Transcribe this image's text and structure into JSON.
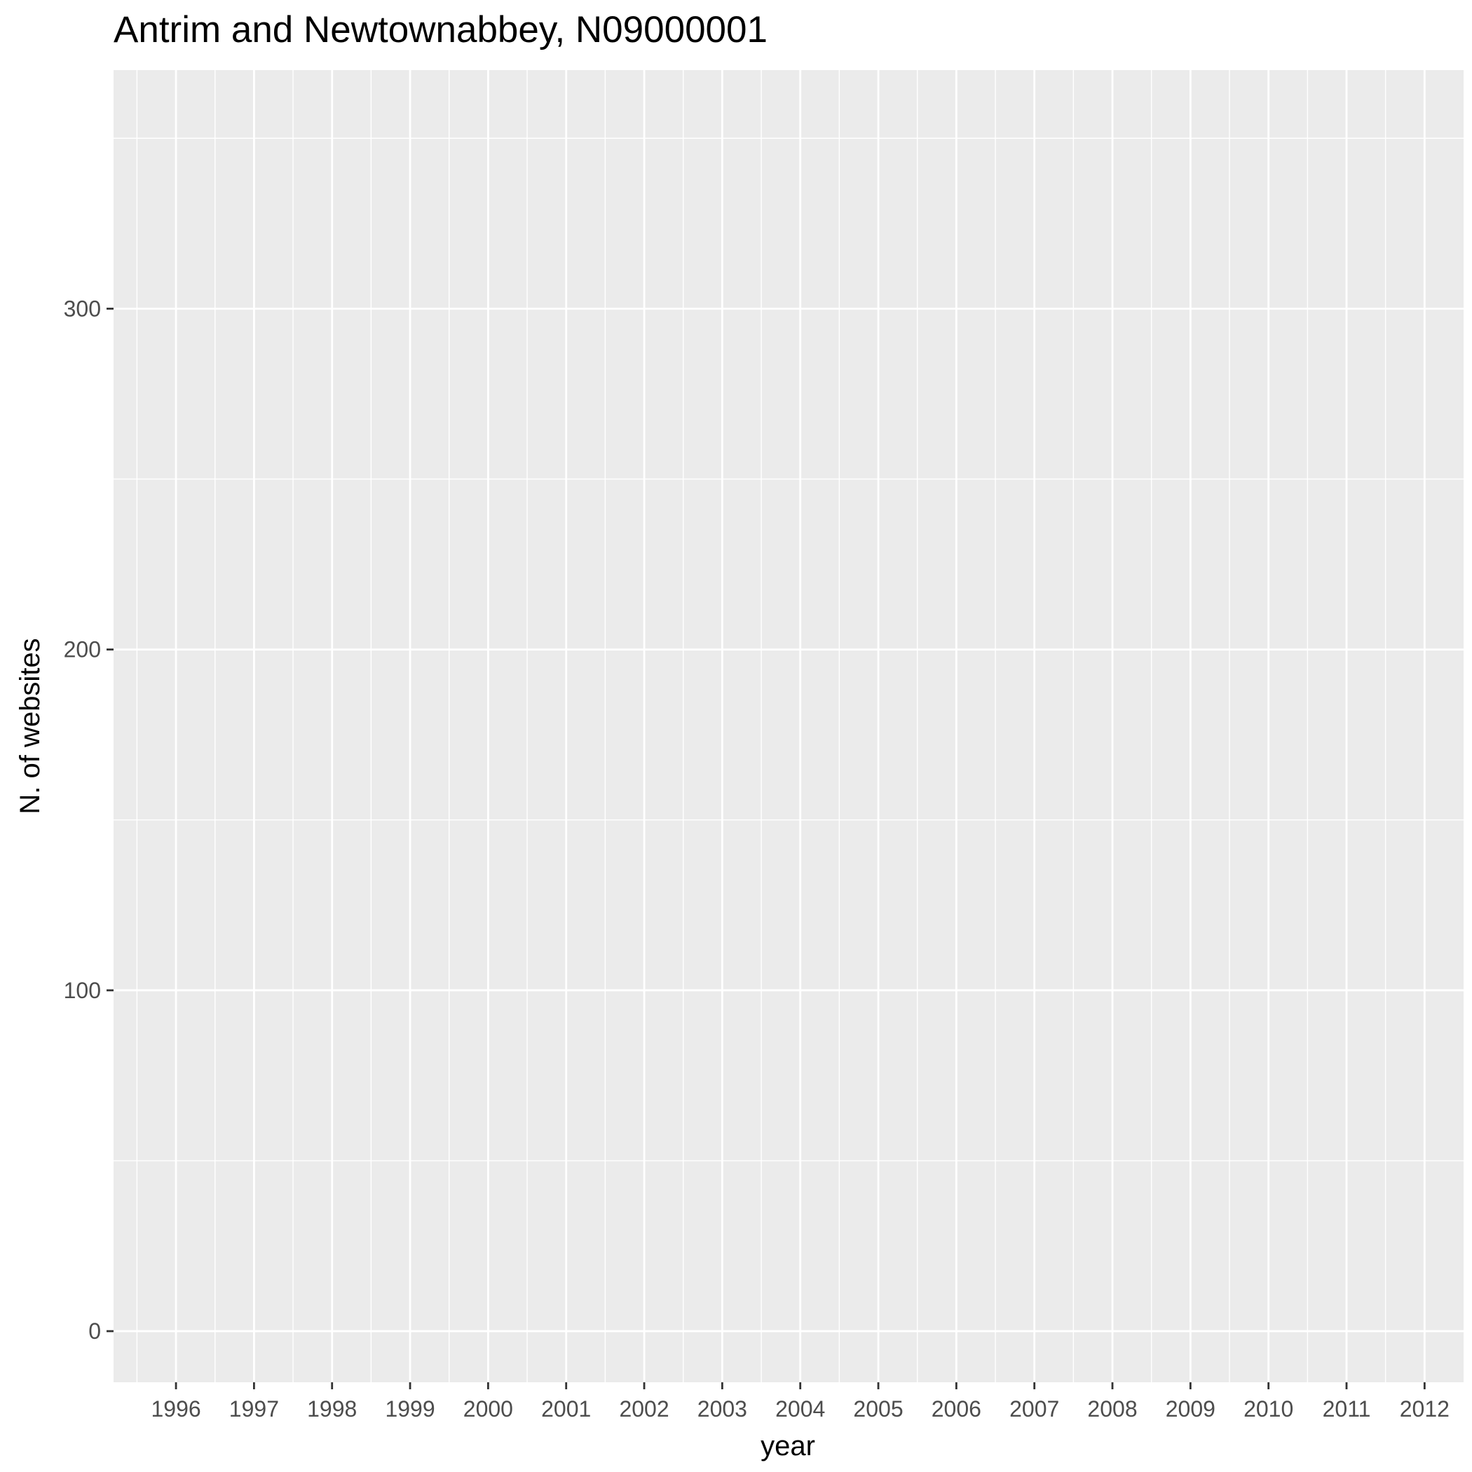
{
  "chart_data": {
    "type": "line",
    "title": "Antrim and Newtownabbey, N09000001",
    "xlabel": "year",
    "ylabel": "N. of websites",
    "x_ticks": [
      "1996",
      "1997",
      "1998",
      "1999",
      "2000",
      "2001",
      "2002",
      "2003",
      "2004",
      "2005",
      "2006",
      "2007",
      "2008",
      "2009",
      "2010",
      "2011",
      "2012"
    ],
    "y_ticks": [
      0,
      100,
      200,
      300
    ],
    "xlim": [
      1995.2,
      2012.5
    ],
    "ylim": [
      -15,
      370
    ],
    "grid": true,
    "series": [],
    "colors": {
      "panel_background": "#ebebeb",
      "grid_line": "#ffffff",
      "tick_text": "#4d4d4d",
      "tick_mark": "#333333"
    }
  }
}
